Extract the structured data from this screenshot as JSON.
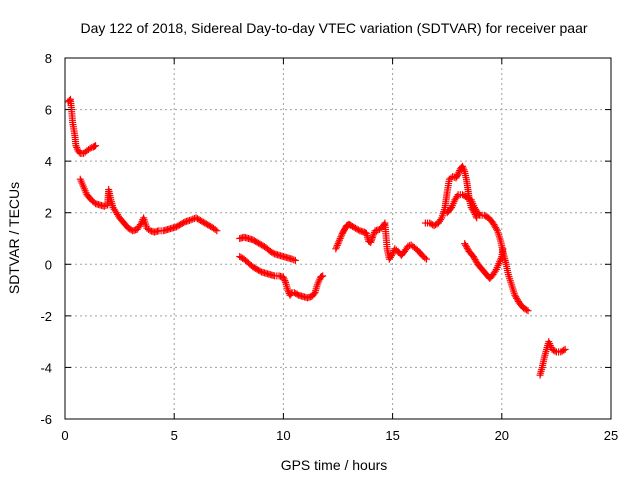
{
  "chart_data": {
    "type": "scatter",
    "title": "Day 122 of 2018, Sidereal Day-to-day VTEC variation (SDTVAR) for receiver paar",
    "xlabel": "GPS time / hours",
    "ylabel": "SDTVAR / TECUs",
    "xlim": [
      0,
      25
    ],
    "ylim": [
      -6,
      8
    ],
    "xticks": [
      "0",
      "5",
      "10",
      "15",
      "20",
      "25"
    ],
    "yticks": [
      "-6",
      "-4",
      "-2",
      "0",
      "2",
      "4",
      "6",
      "8"
    ],
    "grid": true,
    "marker": "+",
    "color": "#ff0000",
    "series": [
      {
        "name": "SDTVAR",
        "segments": [
          [
            [
              0.15,
              6.3
            ],
            [
              0.25,
              6.4
            ],
            [
              0.3,
              6.0
            ],
            [
              0.35,
              5.5
            ],
            [
              0.45,
              5.0
            ],
            [
              0.5,
              4.6
            ],
            [
              0.6,
              4.4
            ],
            [
              0.7,
              4.3
            ],
            [
              0.85,
              4.3
            ],
            [
              1.0,
              4.4
            ],
            [
              1.15,
              4.5
            ],
            [
              1.3,
              4.55
            ],
            [
              1.4,
              4.6
            ]
          ],
          [
            [
              0.7,
              3.3
            ],
            [
              0.85,
              3.0
            ],
            [
              1.0,
              2.7
            ],
            [
              1.2,
              2.5
            ],
            [
              1.4,
              2.35
            ],
            [
              1.6,
              2.3
            ],
            [
              1.8,
              2.25
            ],
            [
              1.95,
              2.3
            ],
            [
              2.0,
              2.9
            ],
            [
              2.1,
              2.5
            ],
            [
              2.2,
              2.2
            ],
            [
              2.35,
              2.0
            ],
            [
              2.5,
              1.8
            ],
            [
              2.7,
              1.6
            ],
            [
              2.9,
              1.4
            ],
            [
              3.1,
              1.3
            ],
            [
              3.3,
              1.35
            ],
            [
              3.5,
              1.6
            ],
            [
              3.6,
              1.8
            ],
            [
              3.75,
              1.4
            ],
            [
              3.9,
              1.3
            ],
            [
              4.1,
              1.25
            ],
            [
              4.3,
              1.3
            ],
            [
              4.5,
              1.3
            ],
            [
              4.7,
              1.35
            ],
            [
              4.9,
              1.4
            ],
            [
              5.1,
              1.45
            ],
            [
              5.3,
              1.55
            ],
            [
              5.5,
              1.65
            ],
            [
              5.7,
              1.7
            ],
            [
              5.85,
              1.75
            ],
            [
              6.0,
              1.8
            ],
            [
              6.2,
              1.7
            ],
            [
              6.4,
              1.6
            ],
            [
              6.6,
              1.5
            ],
            [
              6.8,
              1.4
            ],
            [
              6.95,
              1.3
            ]
          ],
          [
            [
              8.0,
              1.0
            ],
            [
              8.2,
              1.05
            ],
            [
              8.4,
              1.0
            ],
            [
              8.6,
              0.95
            ],
            [
              8.8,
              0.85
            ],
            [
              9.0,
              0.75
            ],
            [
              9.2,
              0.65
            ],
            [
              9.4,
              0.5
            ],
            [
              9.6,
              0.4
            ],
            [
              9.8,
              0.35
            ],
            [
              10.0,
              0.3
            ],
            [
              10.2,
              0.25
            ],
            [
              10.4,
              0.2
            ],
            [
              10.55,
              0.15
            ]
          ],
          [
            [
              8.0,
              0.3
            ],
            [
              8.2,
              0.2
            ],
            [
              8.4,
              0.05
            ],
            [
              8.6,
              -0.1
            ],
            [
              8.8,
              -0.2
            ],
            [
              9.0,
              -0.3
            ],
            [
              9.2,
              -0.35
            ],
            [
              9.4,
              -0.4
            ],
            [
              9.6,
              -0.45
            ],
            [
              9.8,
              -0.45
            ],
            [
              10.0,
              -0.5
            ],
            [
              10.1,
              -0.7
            ],
            [
              10.2,
              -1.0
            ],
            [
              10.3,
              -1.2
            ],
            [
              10.4,
              -1.1
            ],
            [
              10.5,
              -1.1
            ],
            [
              10.7,
              -1.2
            ],
            [
              10.9,
              -1.25
            ],
            [
              11.1,
              -1.3
            ],
            [
              11.3,
              -1.25
            ],
            [
              11.45,
              -1.1
            ],
            [
              11.55,
              -0.8
            ],
            [
              11.7,
              -0.5
            ],
            [
              11.8,
              -0.45
            ]
          ],
          [
            [
              12.4,
              0.6
            ],
            [
              12.5,
              0.8
            ],
            [
              12.6,
              1.0
            ],
            [
              12.7,
              1.2
            ],
            [
              12.8,
              1.35
            ],
            [
              12.9,
              1.5
            ],
            [
              13.0,
              1.55
            ],
            [
              13.1,
              1.5
            ],
            [
              13.3,
              1.4
            ],
            [
              13.5,
              1.3
            ],
            [
              13.7,
              1.25
            ],
            [
              13.8,
              1.2
            ],
            [
              13.9,
              0.9
            ],
            [
              14.0,
              0.85
            ],
            [
              14.1,
              1.1
            ],
            [
              14.2,
              1.3
            ],
            [
              14.4,
              1.35
            ],
            [
              14.55,
              1.45
            ],
            [
              14.65,
              1.6
            ],
            [
              14.75,
              0.6
            ],
            [
              14.85,
              0.2
            ],
            [
              15.0,
              0.4
            ],
            [
              15.1,
              0.6
            ],
            [
              15.25,
              0.5
            ],
            [
              15.4,
              0.35
            ],
            [
              15.55,
              0.5
            ],
            [
              15.7,
              0.7
            ],
            [
              15.85,
              0.75
            ],
            [
              16.0,
              0.65
            ],
            [
              16.2,
              0.5
            ],
            [
              16.4,
              0.3
            ],
            [
              16.55,
              0.2
            ]
          ],
          [
            [
              16.5,
              1.6
            ],
            [
              16.7,
              1.6
            ],
            [
              16.9,
              1.5
            ],
            [
              17.1,
              1.6
            ],
            [
              17.25,
              1.8
            ],
            [
              17.4,
              2.2
            ],
            [
              17.5,
              2.8
            ],
            [
              17.6,
              3.3
            ],
            [
              17.75,
              3.4
            ],
            [
              17.9,
              3.35
            ],
            [
              18.0,
              3.5
            ],
            [
              18.1,
              3.7
            ],
            [
              18.2,
              3.8
            ],
            [
              18.3,
              3.6
            ],
            [
              18.4,
              3.2
            ],
            [
              18.5,
              2.6
            ],
            [
              18.6,
              2.2
            ],
            [
              18.75,
              2.0
            ],
            [
              18.85,
              1.8
            ]
          ],
          [
            [
              17.5,
              2.0
            ],
            [
              17.7,
              2.2
            ],
            [
              17.85,
              2.5
            ],
            [
              18.0,
              2.7
            ],
            [
              18.2,
              2.7
            ],
            [
              18.4,
              2.6
            ],
            [
              18.6,
              2.5
            ],
            [
              18.75,
              2.2
            ],
            [
              18.9,
              2.0
            ],
            [
              19.0,
              1.9
            ],
            [
              19.2,
              1.9
            ],
            [
              19.4,
              1.8
            ],
            [
              19.6,
              1.6
            ],
            [
              19.8,
              1.3
            ],
            [
              19.95,
              0.9
            ],
            [
              20.05,
              0.5
            ],
            [
              20.2,
              0.0
            ],
            [
              20.3,
              -0.4
            ],
            [
              20.45,
              -0.8
            ],
            [
              20.6,
              -1.2
            ],
            [
              20.8,
              -1.5
            ],
            [
              21.0,
              -1.7
            ],
            [
              21.2,
              -1.8
            ]
          ],
          [
            [
              18.3,
              0.8
            ],
            [
              18.5,
              0.5
            ],
            [
              18.7,
              0.3
            ],
            [
              18.9,
              0.0
            ],
            [
              19.1,
              -0.2
            ],
            [
              19.3,
              -0.4
            ],
            [
              19.45,
              -0.55
            ],
            [
              19.6,
              -0.4
            ],
            [
              19.75,
              -0.2
            ],
            [
              19.9,
              0.1
            ],
            [
              20.0,
              0.3
            ],
            [
              20.05,
              0.6
            ]
          ],
          [
            [
              21.75,
              -4.3
            ],
            [
              21.85,
              -4.0
            ],
            [
              21.95,
              -3.6
            ],
            [
              22.05,
              -3.3
            ],
            [
              22.15,
              -3.0
            ],
            [
              22.3,
              -3.3
            ],
            [
              22.5,
              -3.4
            ],
            [
              22.7,
              -3.4
            ],
            [
              22.9,
              -3.3
            ]
          ]
        ]
      }
    ]
  }
}
